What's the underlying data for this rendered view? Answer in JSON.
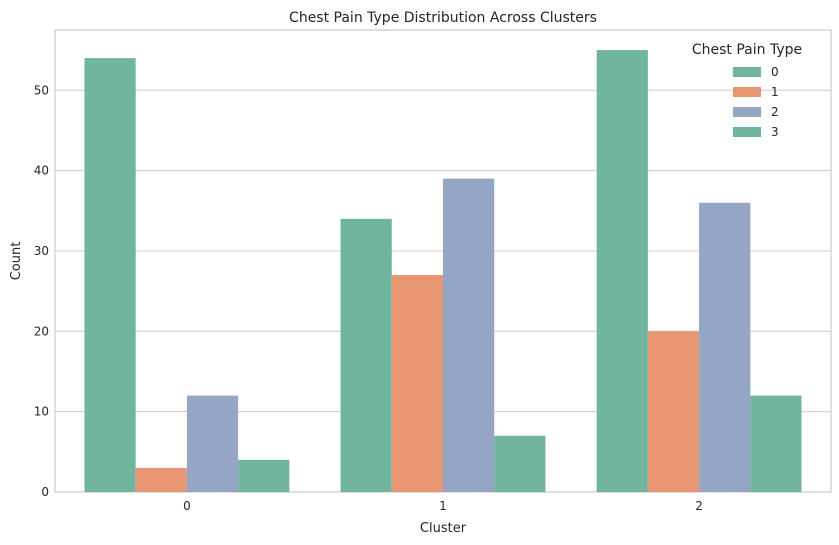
{
  "chart_data": {
    "type": "bar",
    "title": "Chest Pain Type Distribution Across Clusters",
    "xlabel": "Cluster",
    "ylabel": "Count",
    "categories": [
      "0",
      "1",
      "2"
    ],
    "ylim": [
      0,
      57.5
    ],
    "yticks": [
      0,
      10,
      20,
      30,
      40,
      50
    ],
    "grid": "horizontal",
    "legend": {
      "title": "Chest Pain Type",
      "placement": "top-right"
    },
    "series": [
      {
        "name": "0",
        "color": "#72b59e",
        "values": [
          54,
          34,
          55
        ]
      },
      {
        "name": "1",
        "color": "#e89672",
        "values": [
          3,
          27,
          20
        ]
      },
      {
        "name": "2",
        "color": "#95a5c4",
        "values": [
          12,
          39,
          36
        ]
      },
      {
        "name": "3",
        "color": "#72b59e",
        "values": [
          4,
          7,
          12
        ]
      }
    ]
  }
}
